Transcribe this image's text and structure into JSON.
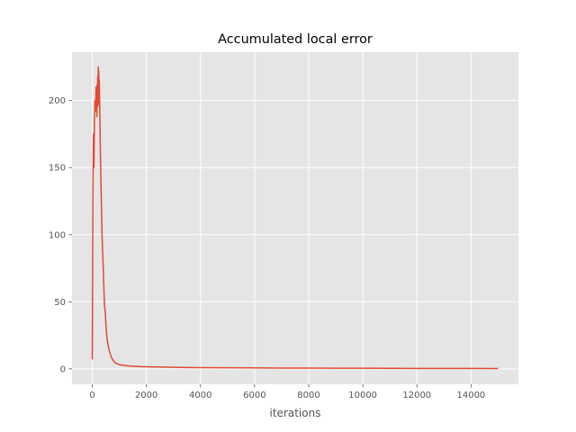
{
  "chart_data": {
    "type": "line",
    "title": "Accumulated local error",
    "xlabel": "iterations",
    "ylabel": "",
    "xlim": [
      -750,
      15750
    ],
    "ylim": [
      -11.5,
      236
    ],
    "xticks": [
      0,
      2000,
      4000,
      6000,
      8000,
      10000,
      12000,
      14000
    ],
    "yticks": [
      0,
      50,
      100,
      150,
      200
    ],
    "grid": true,
    "legend": "none",
    "colors": {
      "background": "#e5e5e5",
      "grid": "#ffffff",
      "line": "#e24a33",
      "tick": "#555555"
    },
    "series": [
      {
        "x": [
          0,
          20,
          40,
          60,
          80,
          100,
          120,
          140,
          150,
          160,
          170,
          180,
          190,
          200,
          210,
          220,
          230,
          240,
          250,
          260,
          270,
          280,
          300,
          320,
          340,
          360,
          380,
          400,
          420,
          450,
          480,
          500,
          520,
          550,
          600,
          650,
          700,
          750,
          800,
          850,
          900,
          1000,
          1100,
          1200,
          1300,
          1400,
          1500,
          1600,
          1800,
          2000,
          2200,
          2500,
          3000,
          3500,
          4000,
          5000,
          6000,
          7000,
          8000,
          9000,
          10000,
          11000,
          12000,
          13000,
          14000,
          15000
        ],
        "y": [
          7,
          120,
          175,
          150,
          185,
          200,
          192,
          210,
          198,
          205,
          188,
          212,
          200,
          218,
          196,
          225,
          205,
          222,
          198,
          215,
          200,
          190,
          160,
          140,
          120,
          100,
          88,
          78,
          65,
          48,
          42,
          35,
          28,
          22,
          16,
          12,
          9,
          7,
          5.5,
          4.5,
          4,
          3.2,
          2.8,
          2.5,
          2.3,
          2.1,
          2.0,
          1.9,
          1.7,
          1.6,
          1.5,
          1.4,
          1.2,
          1.0,
          0.9,
          0.8,
          0.7,
          0.6,
          0.55,
          0.5,
          0.45,
          0.4,
          0.35,
          0.3,
          0.3,
          0.25
        ]
      }
    ]
  }
}
